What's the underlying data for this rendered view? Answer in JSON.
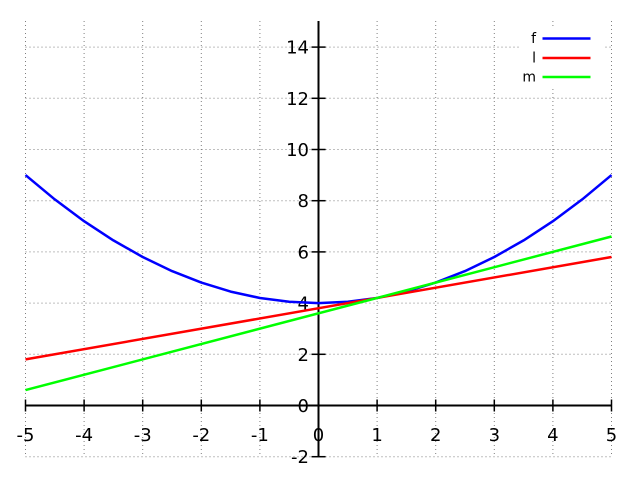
{
  "figure": {
    "background_color": "#ffffff",
    "grid_color": "#7f7f7f",
    "axis_color": "#000000",
    "text_color": "#000000"
  },
  "chart_data": {
    "type": "line",
    "title": "",
    "xlabel": "",
    "ylabel": "",
    "x_range": [
      -5,
      5
    ],
    "y_range": [
      -2,
      15
    ],
    "x_ticks": [
      -5,
      -4,
      -3,
      -2,
      -1,
      0,
      1,
      2,
      3,
      4,
      5
    ],
    "y_ticks": [
      -2,
      0,
      2,
      4,
      6,
      8,
      10,
      12,
      14
    ],
    "grid": "dotted",
    "axis_style": "zero-axes-crossing-ticks",
    "legend_position": "top-right",
    "series": [
      {
        "name": "f",
        "color": "#0000ff",
        "shape": "parabola",
        "points": [
          [
            -5,
            9
          ],
          [
            -4.5,
            8.05
          ],
          [
            -4,
            7.2
          ],
          [
            -3.5,
            6.45
          ],
          [
            -3,
            5.8
          ],
          [
            -2.5,
            5.25
          ],
          [
            -2,
            4.8
          ],
          [
            -1.5,
            4.45
          ],
          [
            -1,
            4.2
          ],
          [
            -0.5,
            4.05
          ],
          [
            0,
            4
          ],
          [
            0.5,
            4.05
          ],
          [
            1,
            4.2
          ],
          [
            1.5,
            4.45
          ],
          [
            2,
            4.8
          ],
          [
            2.5,
            5.25
          ],
          [
            3,
            5.8
          ],
          [
            3.5,
            6.45
          ],
          [
            4,
            7.2
          ],
          [
            4.5,
            8.05
          ],
          [
            5,
            9
          ]
        ]
      },
      {
        "name": "l",
        "color": "#ff0000",
        "shape": "line",
        "points": [
          [
            -5,
            1.8
          ],
          [
            5,
            5.8
          ]
        ]
      },
      {
        "name": "m",
        "color": "#00ff00",
        "shape": "line",
        "points": [
          [
            -5,
            0.6
          ],
          [
            5,
            6.6
          ]
        ]
      }
    ]
  }
}
